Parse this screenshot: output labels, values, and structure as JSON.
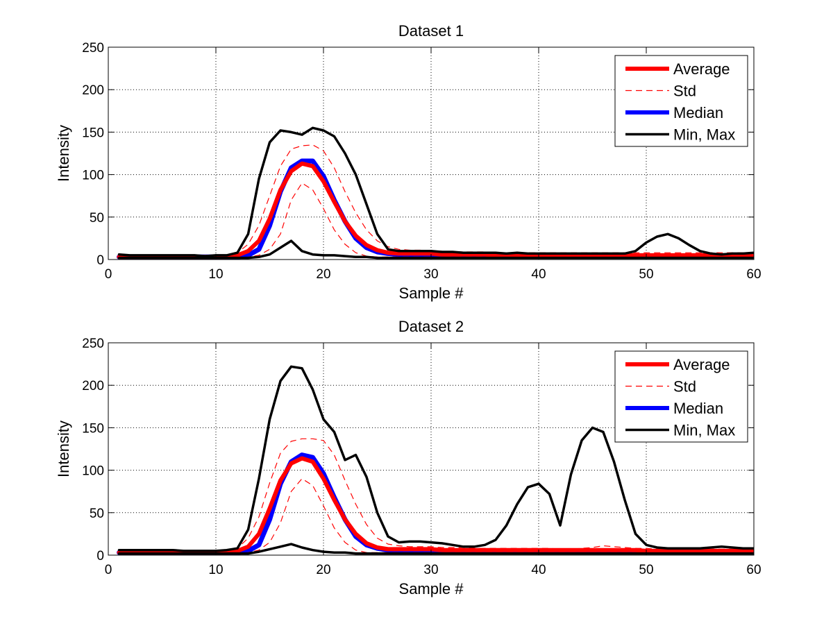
{
  "chart_data": [
    {
      "type": "line",
      "title": "Dataset 1",
      "xlabel": "Sample #",
      "ylabel": "Intensity",
      "xlim": [
        0,
        60
      ],
      "ylim": [
        0,
        250
      ],
      "xticks": [
        0,
        10,
        20,
        30,
        40,
        50,
        60
      ],
      "yticks": [
        0,
        50,
        100,
        150,
        200,
        250
      ],
      "grid": true,
      "legend_position": "top-right",
      "x": [
        1,
        2,
        3,
        4,
        5,
        6,
        7,
        8,
        9,
        10,
        11,
        12,
        13,
        14,
        15,
        16,
        17,
        18,
        19,
        20,
        21,
        22,
        23,
        24,
        25,
        26,
        27,
        28,
        29,
        30,
        31,
        32,
        33,
        34,
        35,
        36,
        37,
        38,
        39,
        40,
        41,
        42,
        43,
        44,
        45,
        46,
        47,
        48,
        49,
        50,
        51,
        52,
        53,
        54,
        55,
        56,
        57,
        58,
        59,
        60
      ],
      "legend": [
        {
          "name": "Average",
          "color": "#ff0000",
          "style": "thick"
        },
        {
          "name": "Std",
          "color": "#ff0000",
          "style": "dashed"
        },
        {
          "name": "Median",
          "color": "#0000ff",
          "style": "thick"
        },
        {
          "name": "Min, Max",
          "color": "#000000",
          "style": "solid"
        }
      ],
      "series": [
        {
          "role": "median",
          "legend": 2,
          "color": "#0000ff",
          "width": 7,
          "dash": "",
          "values": [
            3,
            3,
            3,
            3,
            3,
            3,
            3,
            3,
            3,
            3,
            3,
            3,
            5,
            12,
            40,
            80,
            108,
            116,
            116,
            98,
            70,
            45,
            25,
            14,
            9,
            7,
            6,
            6,
            6,
            6,
            6,
            5,
            5,
            5,
            5,
            5,
            5,
            5,
            4,
            4,
            4,
            4,
            4,
            4,
            4,
            4,
            4,
            4,
            4,
            4,
            4,
            4,
            4,
            4,
            4,
            4,
            4,
            4,
            4,
            4
          ]
        },
        {
          "role": "average",
          "legend": 0,
          "color": "#ff0000",
          "width": 6,
          "dash": "",
          "values": [
            3,
            3,
            3,
            3,
            3,
            3,
            3,
            3,
            3,
            3,
            3,
            5,
            10,
            22,
            48,
            82,
            104,
            113,
            110,
            92,
            68,
            45,
            28,
            17,
            11,
            8,
            7,
            7,
            7,
            7,
            6,
            6,
            6,
            6,
            6,
            5,
            5,
            5,
            5,
            5,
            5,
            5,
            5,
            5,
            5,
            5,
            5,
            5,
            5,
            5,
            5,
            5,
            5,
            5,
            5,
            5,
            5,
            5,
            5,
            5
          ]
        },
        {
          "role": "std-upper",
          "legend": 1,
          "color": "#ff0000",
          "width": 1.2,
          "dash": "9,6",
          "values": [
            4,
            4,
            4,
            4,
            4,
            4,
            4,
            4,
            4,
            4,
            5,
            8,
            18,
            40,
            75,
            110,
            130,
            134,
            135,
            128,
            108,
            80,
            55,
            35,
            22,
            15,
            12,
            11,
            11,
            10,
            10,
            9,
            9,
            9,
            9,
            8,
            8,
            8,
            8,
            8,
            8,
            8,
            8,
            8,
            8,
            8,
            8,
            8,
            8,
            8,
            8,
            8,
            8,
            8,
            8,
            8,
            8,
            8,
            8,
            8
          ]
        },
        {
          "role": "std-lower",
          "legend": 1,
          "color": "#ff0000",
          "width": 1.2,
          "dash": "9,6",
          "values": [
            2,
            2,
            2,
            2,
            2,
            2,
            2,
            2,
            2,
            2,
            2,
            2,
            3,
            5,
            12,
            30,
            70,
            90,
            82,
            60,
            35,
            18,
            8,
            4,
            3,
            3,
            3,
            3,
            3,
            3,
            3,
            3,
            3,
            3,
            3,
            3,
            3,
            3,
            3,
            3,
            3,
            3,
            3,
            3,
            3,
            3,
            3,
            3,
            3,
            3,
            3,
            3,
            3,
            3,
            3,
            3,
            3,
            3,
            3,
            3
          ]
        },
        {
          "role": "max",
          "legend": 3,
          "color": "#000000",
          "width": 3.5,
          "dash": "",
          "values": [
            6,
            5,
            5,
            5,
            5,
            5,
            5,
            5,
            4,
            5,
            5,
            8,
            30,
            95,
            138,
            152,
            150,
            147,
            155,
            152,
            145,
            125,
            100,
            65,
            30,
            12,
            10,
            10,
            10,
            10,
            9,
            9,
            8,
            8,
            8,
            8,
            7,
            8,
            7,
            7,
            7,
            7,
            7,
            7,
            7,
            7,
            7,
            7,
            10,
            20,
            27,
            30,
            25,
            17,
            10,
            7,
            6,
            7,
            7,
            8
          ]
        },
        {
          "role": "min",
          "legend": 3,
          "color": "#000000",
          "width": 3.5,
          "dash": "",
          "values": [
            2,
            2,
            2,
            2,
            2,
            2,
            2,
            2,
            2,
            2,
            2,
            2,
            2,
            3,
            6,
            14,
            22,
            10,
            6,
            5,
            5,
            4,
            3,
            3,
            2,
            2,
            2,
            2,
            2,
            2,
            2,
            2,
            2,
            2,
            2,
            2,
            2,
            2,
            2,
            2,
            2,
            2,
            2,
            2,
            2,
            2,
            2,
            2,
            2,
            2,
            2,
            2,
            2,
            2,
            2,
            2,
            2,
            2,
            2,
            2
          ]
        }
      ]
    },
    {
      "type": "line",
      "title": "Dataset 2",
      "xlabel": "Sample #",
      "ylabel": "Intensity",
      "xlim": [
        0,
        60
      ],
      "ylim": [
        0,
        250
      ],
      "xticks": [
        0,
        10,
        20,
        30,
        40,
        50,
        60
      ],
      "yticks": [
        0,
        50,
        100,
        150,
        200,
        250
      ],
      "grid": true,
      "legend_position": "top-right",
      "x": [
        1,
        2,
        3,
        4,
        5,
        6,
        7,
        8,
        9,
        10,
        11,
        12,
        13,
        14,
        15,
        16,
        17,
        18,
        19,
        20,
        21,
        22,
        23,
        24,
        25,
        26,
        27,
        28,
        29,
        30,
        31,
        32,
        33,
        34,
        35,
        36,
        37,
        38,
        39,
        40,
        41,
        42,
        43,
        44,
        45,
        46,
        47,
        48,
        49,
        50,
        51,
        52,
        53,
        54,
        55,
        56,
        57,
        58,
        59,
        60
      ],
      "legend": [
        {
          "name": "Average",
          "color": "#ff0000",
          "style": "thick"
        },
        {
          "name": "Std",
          "color": "#ff0000",
          "style": "dashed"
        },
        {
          "name": "Median",
          "color": "#0000ff",
          "style": "thick"
        },
        {
          "name": "Min, Max",
          "color": "#000000",
          "style": "solid"
        }
      ],
      "series": [
        {
          "role": "median",
          "legend": 2,
          "color": "#0000ff",
          "width": 7,
          "dash": "",
          "values": [
            3,
            3,
            3,
            3,
            3,
            3,
            3,
            3,
            3,
            3,
            3,
            3,
            5,
            12,
            42,
            84,
            110,
            118,
            115,
            96,
            68,
            42,
            22,
            12,
            8,
            6,
            6,
            6,
            6,
            6,
            5,
            5,
            5,
            5,
            5,
            5,
            5,
            4,
            4,
            4,
            4,
            4,
            4,
            4,
            4,
            4,
            4,
            4,
            4,
            4,
            4,
            4,
            4,
            4,
            4,
            4,
            4,
            4,
            4,
            4
          ]
        },
        {
          "role": "average",
          "legend": 0,
          "color": "#ff0000",
          "width": 6,
          "dash": "",
          "values": [
            3,
            3,
            3,
            3,
            3,
            3,
            3,
            3,
            3,
            3,
            3,
            5,
            10,
            25,
            55,
            88,
            108,
            114,
            110,
            90,
            65,
            42,
            25,
            14,
            9,
            7,
            7,
            7,
            7,
            7,
            6,
            6,
            6,
            6,
            6,
            6,
            6,
            6,
            6,
            6,
            6,
            6,
            6,
            6,
            6,
            6,
            6,
            6,
            6,
            5,
            5,
            5,
            5,
            5,
            5,
            5,
            5,
            5,
            5,
            5
          ]
        },
        {
          "role": "std-upper",
          "legend": 1,
          "color": "#ff0000",
          "width": 1.2,
          "dash": "9,6",
          "values": [
            4,
            4,
            4,
            4,
            4,
            4,
            4,
            4,
            4,
            4,
            5,
            8,
            20,
            45,
            85,
            120,
            134,
            137,
            137,
            135,
            118,
            88,
            60,
            36,
            20,
            13,
            11,
            10,
            10,
            10,
            9,
            9,
            9,
            8,
            8,
            8,
            8,
            8,
            8,
            8,
            8,
            7,
            7,
            8,
            9,
            11,
            10,
            9,
            8,
            8,
            7,
            7,
            7,
            7,
            7,
            7,
            7,
            7,
            7,
            7
          ]
        },
        {
          "role": "std-lower",
          "legend": 1,
          "color": "#ff0000",
          "width": 1.2,
          "dash": "9,6",
          "values": [
            2,
            2,
            2,
            2,
            2,
            2,
            2,
            2,
            2,
            2,
            2,
            2,
            3,
            6,
            15,
            38,
            75,
            90,
            82,
            58,
            32,
            15,
            6,
            3,
            3,
            3,
            3,
            3,
            3,
            3,
            3,
            3,
            3,
            3,
            3,
            3,
            3,
            3,
            3,
            3,
            3,
            3,
            3,
            3,
            3,
            3,
            3,
            3,
            3,
            3,
            3,
            3,
            3,
            3,
            3,
            3,
            3,
            3,
            3,
            3
          ]
        },
        {
          "role": "max",
          "legend": 3,
          "color": "#000000",
          "width": 3.5,
          "dash": "",
          "values": [
            6,
            6,
            6,
            6,
            6,
            6,
            5,
            5,
            5,
            5,
            6,
            8,
            30,
            90,
            160,
            205,
            222,
            220,
            195,
            160,
            145,
            112,
            118,
            92,
            50,
            22,
            15,
            16,
            16,
            15,
            14,
            12,
            10,
            10,
            12,
            18,
            35,
            60,
            80,
            84,
            72,
            35,
            95,
            135,
            150,
            145,
            110,
            65,
            25,
            12,
            9,
            8,
            8,
            8,
            8,
            9,
            10,
            9,
            8,
            8
          ]
        },
        {
          "role": "min",
          "legend": 3,
          "color": "#000000",
          "width": 3.5,
          "dash": "",
          "values": [
            2,
            2,
            2,
            2,
            2,
            2,
            2,
            2,
            2,
            2,
            2,
            2,
            2,
            4,
            7,
            10,
            13,
            9,
            6,
            4,
            3,
            3,
            2,
            2,
            2,
            2,
            2,
            2,
            2,
            2,
            2,
            2,
            2,
            2,
            2,
            2,
            2,
            2,
            2,
            2,
            2,
            2,
            2,
            2,
            2,
            2,
            2,
            2,
            2,
            2,
            2,
            2,
            2,
            2,
            2,
            2,
            2,
            2,
            2,
            2
          ]
        }
      ]
    }
  ]
}
